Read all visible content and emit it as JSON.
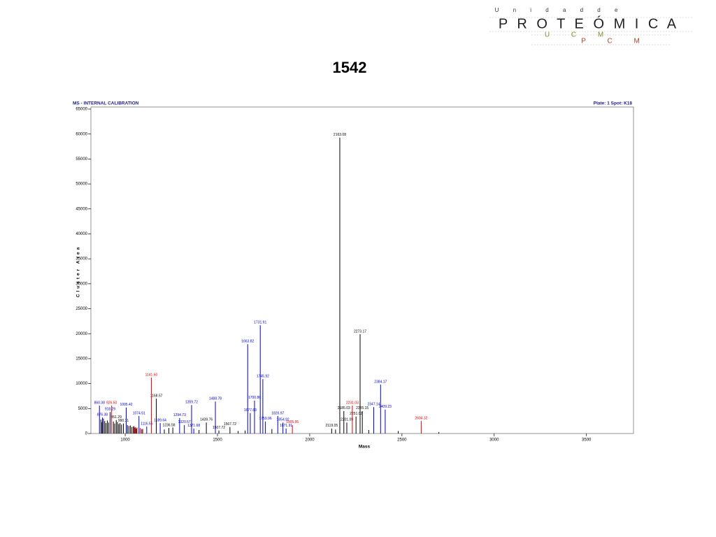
{
  "logo": {
    "top": "U n i d a d   d e",
    "main": "P R O T E Ó M I C A",
    "sub1": "U C M",
    "sub2": "P C M"
  },
  "chart_data": {
    "type": "spectrum",
    "title": "1542",
    "header_left": "MS - INTERNAL CALIBRATION",
    "header_right": "Plate: 1 Spot: K18",
    "xlabel": "Mass",
    "ylabel": "Cluster Area",
    "xlim": [
      814,
      3755
    ],
    "ylim": [
      0,
      65000
    ],
    "xticks": [
      1000,
      1500,
      2000,
      2500,
      3000,
      3500
    ],
    "yticks": [
      0,
      5000,
      10000,
      15000,
      20000,
      25000,
      30000,
      35000,
      40000,
      45000,
      50000,
      55000,
      60000,
      65000
    ],
    "series": [
      {
        "color": "#000000",
        "x": [
          2163.08,
          2273.17,
          1168.57,
          2185.03,
          2251.02,
          2285.15,
          2201.09,
          2119.05,
          1567.72,
          1507.72,
          1439.76,
          1236.58,
          990.31,
          951.29
        ],
        "values": [
          59300,
          19900,
          7000,
          4500,
          3400,
          4500,
          2200,
          1000,
          1300,
          600,
          2200,
          1100,
          2000,
          2700
        ],
        "peak_labels": [
          "2163.08",
          "2273.17",
          "1168.57",
          "2185.03",
          "2251.02",
          "2285.15",
          "2201.09",
          "2119.05",
          "1567.72",
          "1507.72",
          "1439.76",
          "1236.58",
          "990.31",
          "951.29"
        ]
      },
      {
        "color": "#0000cc",
        "x": [
          1731.91,
          1663.82,
          1745.92,
          2384.17,
          1488.78,
          1700.86,
          1359.72,
          1005.42,
          860.38,
          918.29,
          1294.73,
          1074.51,
          2347.14,
          2409.23,
          1677.83,
          1826.97,
          1320.57,
          1189.64,
          1854.92,
          1759.96,
          876.38,
          1116.55,
          1371.68,
          1871.91
        ],
        "values": [
          21700,
          17900,
          10900,
          9800,
          6400,
          6600,
          5700,
          5200,
          5600,
          4300,
          3100,
          3500,
          5300,
          4800,
          4100,
          3500,
          1700,
          2100,
          2200,
          2400,
          3200,
          1400,
          1000,
          1000
        ],
        "peak_labels": [
          "1731.91",
          "1663.82",
          "1745.92",
          "2384.17",
          "1488.78",
          "1700.86",
          "1359.72",
          "1005.42",
          "860.38",
          "918.29",
          "1294.73",
          "1074.51",
          "2347.14",
          "2409.23",
          "1677.83",
          "1826.97",
          "1320.57",
          "1189.64",
          "1854.92",
          "1759.96",
          "876.38",
          "1116.55",
          "1371.68",
          "1871.91"
        ]
      },
      {
        "color": "#e00000",
        "x": [
          1141.6,
          926.5,
          2231.03,
          2604.32,
          1905.95
        ],
        "values": [
          11200,
          5600,
          5600,
          2500,
          1700
        ],
        "peak_labels": [
          "1141.60",
          "926.50",
          "2231.03",
          "2604.32",
          "1905.95"
        ]
      },
      {
        "color": "#000000",
        "x": [
          868,
          874,
          882,
          889,
          896,
          903,
          910,
          936,
          943,
          958,
          965,
          972,
          980,
          1012,
          1020,
          1028,
          1036,
          1044,
          1052,
          1060,
          1090,
          1212,
          1258,
          1400,
          1612,
          1650,
          1795,
          2140,
          2320,
          2480,
          2700
        ],
        "values": [
          2800,
          2300,
          3000,
          2500,
          2100,
          2600,
          2200,
          2400,
          2000,
          2300,
          1900,
          2100,
          1800,
          1700,
          1500,
          1600,
          1300,
          1400,
          1200,
          1000,
          900,
          800,
          1200,
          700,
          500,
          600,
          900,
          800,
          700,
          500,
          300
        ]
      },
      {
        "color": "#e00000",
        "x": [
          1048,
          1056,
          1064,
          1081,
          1095
        ],
        "values": [
          1500,
          1300,
          1200,
          1100,
          900
        ]
      }
    ]
  }
}
